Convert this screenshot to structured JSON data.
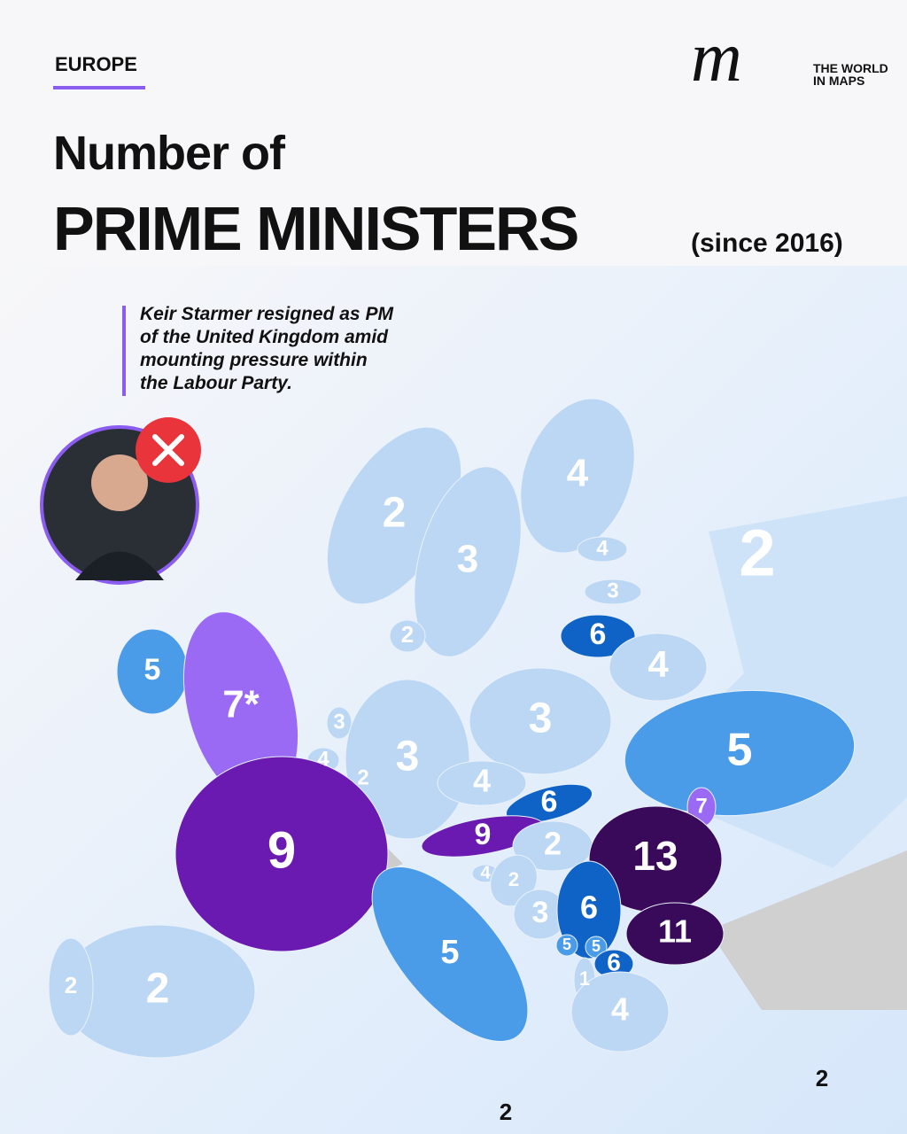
{
  "header": {
    "section": "EUROPE",
    "title_line1": "Number of",
    "title_line2": "PRIME MINISTERS",
    "title_note": "(since 2016)",
    "logo": {
      "mark": "m",
      "brand_line1": "THE WORLD",
      "brand_line2": "IN MAPS"
    }
  },
  "annotation": {
    "lines": [
      "Keir Starmer resigned as PM",
      "of the United Kingdom amid",
      "mounting  pressure within",
      "the Labour Party."
    ]
  },
  "map": {
    "labels": [
      4,
      2,
      3,
      2,
      4,
      3,
      6,
      4,
      2,
      5,
      {
        "value": 7,
        "label": "7*"
      },
      3,
      4,
      2,
      3,
      3,
      5,
      4,
      6,
      7,
      9,
      2,
      9,
      13,
      4,
      2,
      3,
      6,
      11,
      5,
      5,
      5,
      6,
      1,
      4,
      2,
      2,
      2,
      2
    ]
  }
}
